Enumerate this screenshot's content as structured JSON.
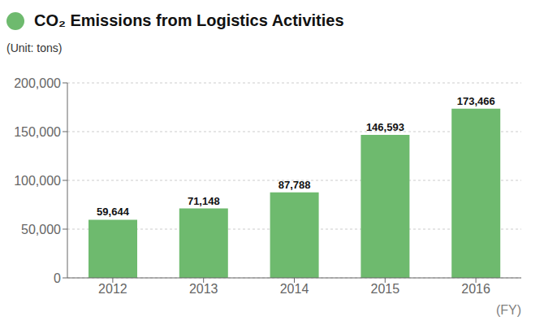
{
  "chart_data": {
    "type": "bar",
    "title": "CO₂ Emissions from Logistics Activities",
    "xlabel": "(FY)",
    "ylabel": "(Unit: tons)",
    "categories": [
      "2012",
      "2013",
      "2014",
      "2015",
      "2016"
    ],
    "values": [
      59644,
      71148,
      87788,
      146593,
      173466
    ],
    "value_labels": [
      "59,644",
      "71,148",
      "87,788",
      "146,593",
      "173,466"
    ],
    "data_labels": true,
    "color": "#6eba6e",
    "ylim": [
      0,
      200000
    ],
    "yticks": [
      0,
      {
        "value": 50000,
        "label": "50,000"
      },
      {
        "value": 100000,
        "label": "100,000"
      },
      {
        "value": 150000,
        "label": "150,000"
      },
      {
        "value": 200000,
        "label": "200,000"
      }
    ],
    "grid": true
  }
}
